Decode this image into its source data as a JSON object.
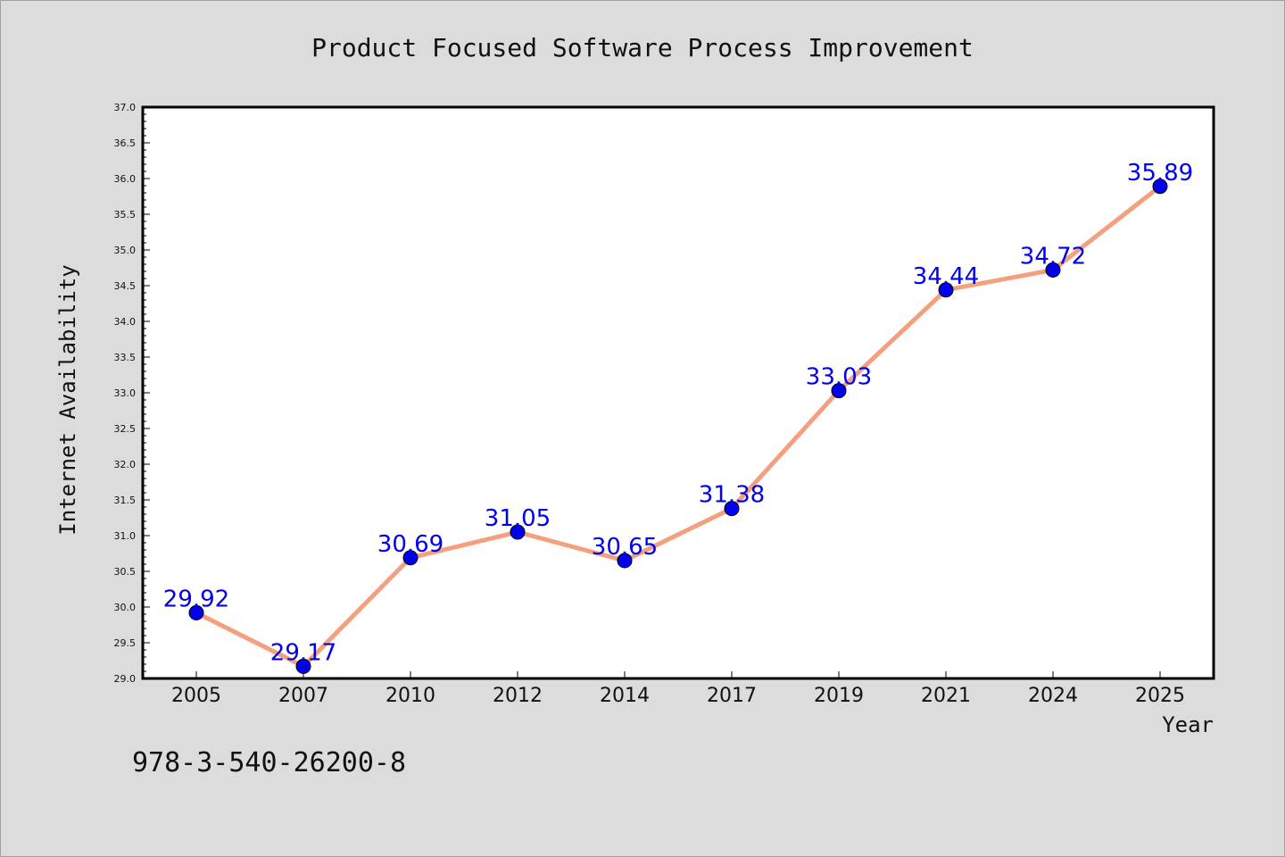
{
  "chart_data": {
    "type": "line",
    "title": "Product Focused Software Process Improvement",
    "xlabel": "Year",
    "ylabel": "Internet Availability",
    "categories": [
      "2005",
      "2007",
      "2010",
      "2012",
      "2014",
      "2017",
      "2019",
      "2021",
      "2024",
      "2025"
    ],
    "series": [
      {
        "values": [
          29.92,
          29.17,
          30.69,
          31.05,
          30.65,
          31.38,
          33.03,
          34.44,
          34.72,
          35.89
        ]
      }
    ],
    "data_labels": [
      "29.92",
      "29.17",
      "30.69",
      "31.05",
      "30.65",
      "31.38",
      "33.03",
      "34.44",
      "34.72",
      "35.89"
    ],
    "ylim": [
      29.0,
      37.0
    ],
    "yticks": [
      "29.0",
      "29.5",
      "30.0",
      "30.5",
      "31.0",
      "31.5",
      "32.0",
      "32.5",
      "33.0",
      "33.5",
      "34.0",
      "34.5",
      "35.0",
      "35.5",
      "36.0",
      "36.5",
      "37.0"
    ],
    "grid": false,
    "legend": "none",
    "colors": {
      "line": "#f4a07e",
      "marker": "#0000ee",
      "label": "#0000ee",
      "background": "#dcdcdc",
      "plot_background": "#ffffff"
    }
  },
  "footnote": "978-3-540-26200-8"
}
